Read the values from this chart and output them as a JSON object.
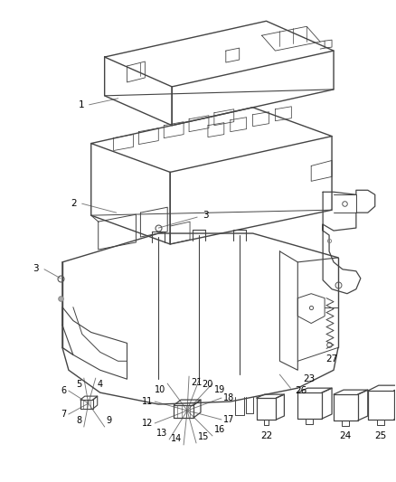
{
  "background_color": "#ffffff",
  "line_color": "#555555",
  "text_color": "#000000",
  "fig_width": 4.38,
  "fig_height": 5.33,
  "dpi": 100,
  "small_fuse_labels": [
    "4",
    "5",
    "6",
    "7",
    "8",
    "9"
  ],
  "large_fuse_labels": [
    "10",
    "11",
    "12",
    "13",
    "14",
    "15",
    "16",
    "17",
    "18",
    "19",
    "20",
    "21"
  ],
  "relay_labels": [
    "22",
    "23",
    "24",
    "25"
  ],
  "part_labels": [
    "1",
    "2",
    "3",
    "26",
    "27"
  ]
}
